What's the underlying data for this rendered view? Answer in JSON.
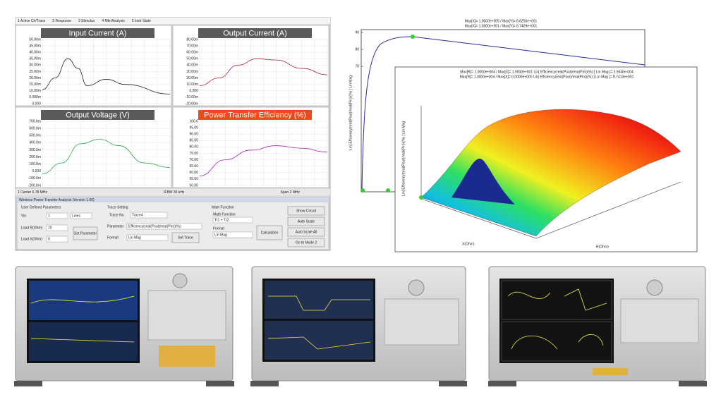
{
  "menu": [
    "1 Active Ch/Trace",
    "2 Response",
    "3 Stimulus",
    "4 Mkr/Analysis",
    "5 Instr State"
  ],
  "panels": [
    {
      "title": "Input Current (A)",
      "yticks": [
        "50.00m",
        "45.00m",
        "40.00m",
        "35.00m",
        "30.00m",
        "25.00m",
        "20.00m",
        "15.00m",
        "10.00m",
        "5.000m",
        "0.000"
      ]
    },
    {
      "title": "Output Current (A)",
      "yticks": [
        "80.00m",
        "70.00m",
        "60.00m",
        "50.00m",
        "40.00m",
        "30.00m",
        "20.00m",
        "10.00m",
        "0.000",
        "-10.00m",
        "-20.00m"
      ]
    },
    {
      "title": "Output Voltage (V)",
      "yticks": [
        "700.0m",
        "600.0m",
        "500.0m",
        "400.0m",
        "300.0m",
        "200.0m",
        "100.0m",
        "0.000",
        "-100.0m",
        "-200.0m"
      ]
    },
    {
      "title": "Power Transfer Efficiency (%)",
      "yticks": [
        "100.0",
        "95.00",
        "90.00",
        "85.00",
        "80.00",
        "75.00",
        "70.00",
        "65.00",
        "60.00",
        "55.00",
        "50.00"
      ]
    }
  ],
  "footer": {
    "center": "1 Center 6.78 MHz",
    "ifbw": "IFBW 30 kHz",
    "span": "Span 2 MHz"
  },
  "control": {
    "title": "Wireless Power Transfer Analysis (Version 1.00)",
    "user": "User Defined Parameters",
    "vin": "Vin",
    "vin_value": "1",
    "vin_unit": "Lines",
    "load_r": "Load R(Ohm)",
    "load_r_value": "10",
    "load_x": "Load X(Ohm)",
    "load_x_value": "0",
    "set_parameter": "Set Parameter",
    "trace_setting": "Trace Setting",
    "trace_no": "Trace No.",
    "trace_value": "Trace4",
    "parameter": "Parameter",
    "parameter_value": "Efficiency(real(Pout)/real(Pin))(%)",
    "format": "Format",
    "format_value": "Lin Mag",
    "set_trace": "Set Trace",
    "math": "Math Function",
    "math_sub": "Math Function",
    "math_value": "Tr1 + Tr2",
    "math_format": "Format",
    "math_format_value": "Lin Mag",
    "calculation": "Calculation",
    "show_circuit": "Show Circuit",
    "auto_scale": "Auto Scale",
    "auto_scale_all": "Auto Scale All",
    "go_mode": "Go to Mode 2"
  },
  "plot2d": {
    "header": [
      "Max[X]= 1.0000e+005 / Max[Y]= 8.8256e+001",
      "Max[X]= 1.0000e+001 / Max[Y]= 8.7409e+001"
    ],
    "ylabel": "Lin[ Efficiency(real(Pout)/real(Pin))(%) ] Lin Mag",
    "yticks": [
      "90",
      "80",
      "70"
    ]
  },
  "plot3d": {
    "header": [
      "Max[R]= 1.0000e+004 / Max[X]= 1.0000e+001 Lin[ Efficiency(real(Pout)/real(Pin))(%) ] Lin Mag [= 2.5546e-004",
      "Max[R]= 1.0000e+004 / Max[X]= 0.0000e+000 Lin[ Efficiency(real(Pout)/real(Pin))(%) ] Lin Mag [= 8.7413e+001"
    ],
    "zlabel": "Lin[ Efficiency(real(Pout)/real(Pin))(%) ] Lin Mag",
    "xlabel": "X(Ohm)",
    "rlabel": "R(Ohm)"
  }
}
